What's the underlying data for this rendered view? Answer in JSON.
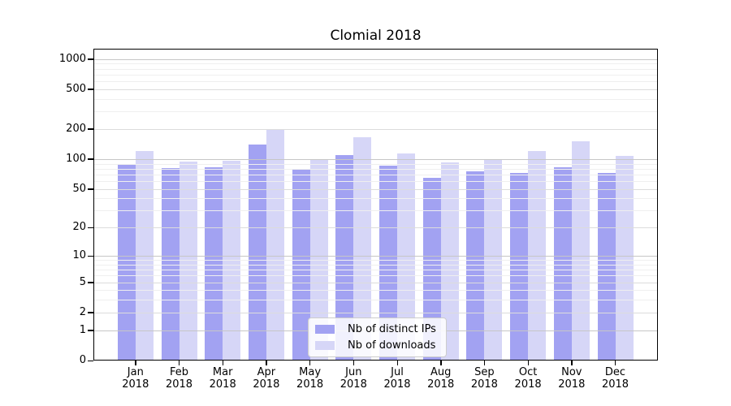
{
  "figure": {
    "title": "Clomial 2018"
  },
  "legend": {
    "items": [
      {
        "label": "Nb of distinct IPs",
        "color": "#a2a2f2"
      },
      {
        "label": "Nb of downloads",
        "color": "#d6d6f7"
      }
    ]
  },
  "y_axis": {
    "scale": "log1p",
    "major_ticks": [
      0,
      1,
      2,
      5,
      10,
      20,
      50,
      100,
      200,
      500,
      1000
    ],
    "minor_ticks": [
      3,
      4,
      6,
      7,
      8,
      9,
      30,
      40,
      60,
      70,
      80,
      90,
      300,
      400,
      600,
      700,
      800,
      900
    ]
  },
  "x_axis": {
    "months": [
      "Jan",
      "Feb",
      "Mar",
      "Apr",
      "May",
      "Jun",
      "Jul",
      "Aug",
      "Sep",
      "Oct",
      "Nov",
      "Dec"
    ],
    "year": "2018"
  },
  "colors": {
    "background": "#ffffff",
    "spine": "#000000",
    "grid_decade": "#c6c6c6",
    "grid_major": "#dcdcdc",
    "grid_minor": "#efefef",
    "bar_distinct_ips": "#a2a2f2",
    "bar_downloads": "#d6d6f7"
  },
  "chart_data": {
    "type": "bar",
    "title": "Clomial 2018",
    "categories": [
      "Jan 2018",
      "Feb 2018",
      "Mar 2018",
      "Apr 2018",
      "May 2018",
      "Jun 2018",
      "Jul 2018",
      "Aug 2018",
      "Sep 2018",
      "Oct 2018",
      "Nov 2018",
      "Dec 2018"
    ],
    "series": [
      {
        "name": "Nb of distinct IPs",
        "color": "#a2a2f2",
        "values": [
          88,
          81,
          83,
          139,
          78,
          110,
          86,
          65,
          76,
          73,
          83,
          72
        ]
      },
      {
        "name": "Nb of downloads",
        "color": "#d6d6f7",
        "values": [
          120,
          95,
          97,
          200,
          100,
          165,
          114,
          92,
          100,
          120,
          150,
          107
        ]
      }
    ],
    "yscale": "log1p",
    "yticks": [
      0,
      1,
      2,
      5,
      10,
      20,
      50,
      100,
      200,
      500,
      1000
    ],
    "ylim": [
      0,
      1265
    ],
    "grid": true,
    "legend_position": "lower center"
  }
}
